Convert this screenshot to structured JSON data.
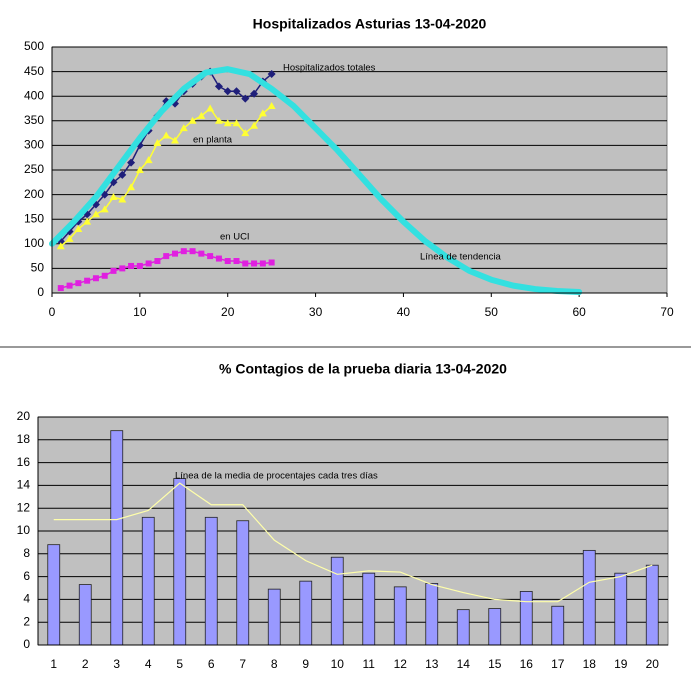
{
  "chart_data": [
    {
      "type": "line",
      "title": "Hospitalizados Asturias 13-04-2020",
      "xlim": [
        0,
        70
      ],
      "xticks": [
        0,
        10,
        20,
        30,
        40,
        50,
        60,
        70
      ],
      "ylim": [
        0,
        500
      ],
      "yticks": [
        0,
        50,
        100,
        150,
        200,
        250,
        300,
        350,
        400,
        450,
        500
      ],
      "grid": true,
      "background": "#c0c0c0",
      "series": [
        {
          "name": "Hospitalizados totales",
          "color": "#1f1f7a",
          "marker": "diamond",
          "x": [
            1,
            2,
            3,
            4,
            5,
            6,
            7,
            8,
            9,
            10,
            11,
            12,
            13,
            14,
            15,
            16,
            17,
            18,
            19,
            20,
            21,
            22,
            23,
            24,
            25
          ],
          "values": [
            105,
            125,
            145,
            160,
            180,
            200,
            225,
            240,
            265,
            300,
            330,
            360,
            390,
            385,
            410,
            425,
            440,
            450,
            420,
            410,
            410,
            395,
            405,
            430,
            445
          ]
        },
        {
          "name": "en planta",
          "color": "#ffff33",
          "marker": "triangle",
          "x": [
            1,
            2,
            3,
            4,
            5,
            6,
            7,
            8,
            9,
            10,
            11,
            12,
            13,
            14,
            15,
            16,
            17,
            18,
            19,
            20,
            21,
            22,
            23,
            24,
            25
          ],
          "values": [
            95,
            110,
            130,
            145,
            160,
            170,
            195,
            190,
            215,
            250,
            270,
            305,
            320,
            310,
            335,
            350,
            360,
            375,
            350,
            345,
            345,
            325,
            340,
            365,
            380
          ]
        },
        {
          "name": "en UCI",
          "color": "#e020e0",
          "marker": "square",
          "x": [
            1,
            2,
            3,
            4,
            5,
            6,
            7,
            8,
            9,
            10,
            11,
            12,
            13,
            14,
            15,
            16,
            17,
            18,
            19,
            20,
            21,
            22,
            23,
            24,
            25
          ],
          "values": [
            10,
            15,
            20,
            25,
            30,
            35,
            45,
            50,
            55,
            55,
            60,
            65,
            75,
            80,
            85,
            85,
            80,
            75,
            70,
            65,
            65,
            60,
            60,
            60,
            62
          ]
        },
        {
          "name": "Línea de tendencia",
          "color": "#33e0e0",
          "marker": "none",
          "line_width": 6,
          "x": [
            0,
            2.5,
            5,
            7.5,
            10,
            12.5,
            15,
            17.5,
            20,
            22.5,
            25,
            27.5,
            30,
            32.5,
            35,
            37.5,
            40,
            42.5,
            45,
            47.5,
            50,
            52.5,
            55,
            57.5,
            60
          ],
          "values": [
            100,
            145,
            195,
            255,
            315,
            370,
            415,
            448,
            455,
            445,
            415,
            380,
            335,
            290,
            240,
            190,
            145,
            105,
            72,
            45,
            27,
            15,
            8,
            4,
            2
          ]
        }
      ]
    },
    {
      "type": "bar",
      "title": "% Contagios de la prueba diaria 13-04-2020",
      "categories": [
        "1",
        "2",
        "3",
        "4",
        "5",
        "6",
        "7",
        "8",
        "9",
        "10",
        "11",
        "12",
        "13",
        "14",
        "15",
        "16",
        "17",
        "18",
        "19",
        "20"
      ],
      "values": [
        8.8,
        5.3,
        18.8,
        11.2,
        14.6,
        11.2,
        10.9,
        4.9,
        5.6,
        7.7,
        6.3,
        5.1,
        5.4,
        3.1,
        3.2,
        4.7,
        3.4,
        8.3,
        6.3,
        7.0
      ],
      "color": "#9999ff",
      "ylim": [
        0,
        20
      ],
      "yticks": [
        0,
        2,
        4,
        6,
        8,
        10,
        12,
        14,
        16,
        18,
        20
      ],
      "grid": true,
      "background": "#c0c0c0",
      "series": [
        {
          "name": "Línea de la media de procentajes cada tres días",
          "color": "#ffffaa",
          "values": [
            11,
            11,
            11,
            11.8,
            14.2,
            12.3,
            12.3,
            9.2,
            7.4,
            6.2,
            6.5,
            6.4,
            5.3,
            4.6,
            4.0,
            3.8,
            3.8,
            5.5,
            6.0,
            7.0
          ]
        }
      ]
    }
  ]
}
